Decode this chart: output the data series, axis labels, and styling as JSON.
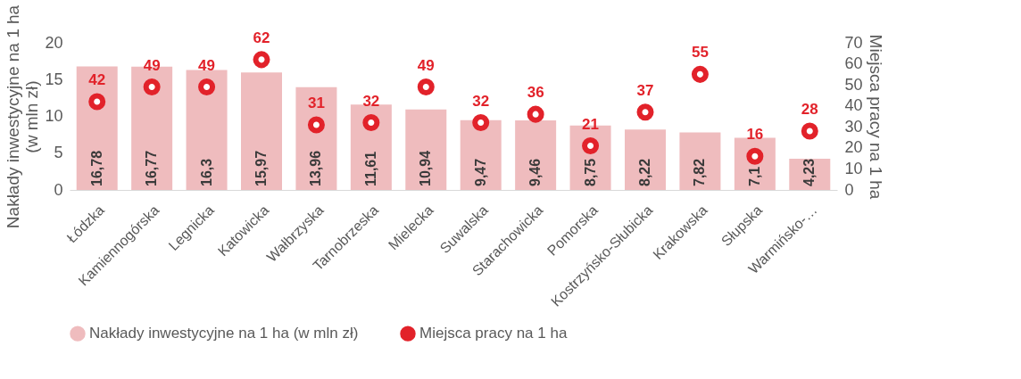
{
  "chart_data": {
    "type": "bar",
    "categories": [
      "Łódzka",
      "Kamiennogórska",
      "Legnicka",
      "Katowicka",
      "Wałbrzyska",
      "Tarnobrzeska",
      "Mielecka",
      "Suwalska",
      "Starachowicka",
      "Pomorska",
      "Kostrzyńsko-Słubicka",
      "Krakowska",
      "Słupska",
      "Warmińsko-…"
    ],
    "ylabel": "Nakłady inwestycyjne na 1 ha\n(w mln zł)",
    "y2label": "Miejsca pracy na 1 ha",
    "ylim": [
      0,
      20
    ],
    "yticks": [
      0,
      5,
      10,
      15,
      20
    ],
    "y2lim": [
      0,
      70
    ],
    "y2ticks": [
      0,
      10,
      20,
      30,
      40,
      50,
      60,
      70
    ],
    "grid": false,
    "legend": "bottom",
    "series": [
      {
        "name": "Nakłady inwestycyjne na 1 ha (w mln zł)",
        "color": "#efbcbe",
        "values": [
          16.78,
          16.77,
          16.3,
          15.97,
          13.96,
          11.61,
          10.94,
          9.47,
          9.46,
          8.75,
          8.22,
          7.82,
          7.1,
          4.23
        ],
        "value_labels": [
          "16,78",
          "16,77",
          "16,3",
          "15,97",
          "13,96",
          "11,61",
          "10,94",
          "9,47",
          "9,46",
          "8,75",
          "8,22",
          "7,82",
          "7,1",
          "4,23"
        ]
      },
      {
        "name": "Miejsca pracy na 1 ha",
        "type": "scatter",
        "axis": "y2",
        "marker": "circle",
        "color": "#e2222a",
        "values": [
          42,
          49,
          49,
          62,
          31,
          32,
          49,
          32,
          36,
          21,
          37,
          55,
          16,
          28
        ],
        "value_labels": [
          "42",
          "49",
          "49",
          "62",
          "31",
          "32",
          "49",
          "32",
          "36",
          "21",
          "37",
          "55",
          "16",
          "28"
        ]
      }
    ]
  }
}
